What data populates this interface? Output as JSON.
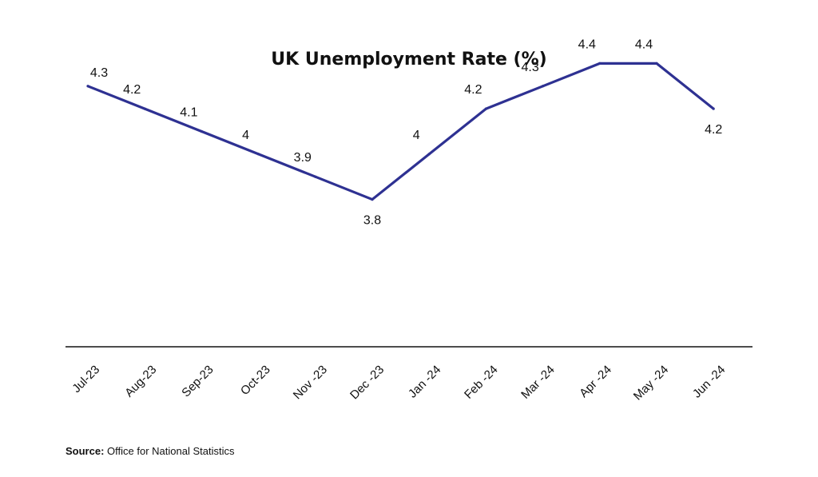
{
  "chart_data": {
    "type": "line",
    "title": "UK Unemployment Rate (%)",
    "categories": [
      "Jul-23",
      "Aug-23",
      "Sep-23",
      "Oct-23",
      "Nov -23",
      "Dec -23",
      "Jan -24",
      "Feb -24",
      "Mar -24",
      "Apr -24",
      "May -24",
      "Jun -24"
    ],
    "series": [
      {
        "values": [
          4.3,
          4.2,
          4.1,
          4.0,
          3.9,
          3.8,
          4.0,
          4.2,
          4.3,
          4.4,
          4.4,
          4.2
        ]
      }
    ],
    "data_labels": [
      "4.3",
      "4.2",
      "4.1",
      "4",
      "3.9",
      "3.8",
      "4",
      "4.2",
      "4.3",
      "4.4",
      "4.4",
      "4.2"
    ],
    "line_color": "#2E3192",
    "axis_color": "#111111",
    "ylim": [
      3.15,
      4.56
    ],
    "grid": false,
    "legend": "none"
  },
  "source": {
    "label": "Source:",
    "text": " Office for National Statistics"
  }
}
